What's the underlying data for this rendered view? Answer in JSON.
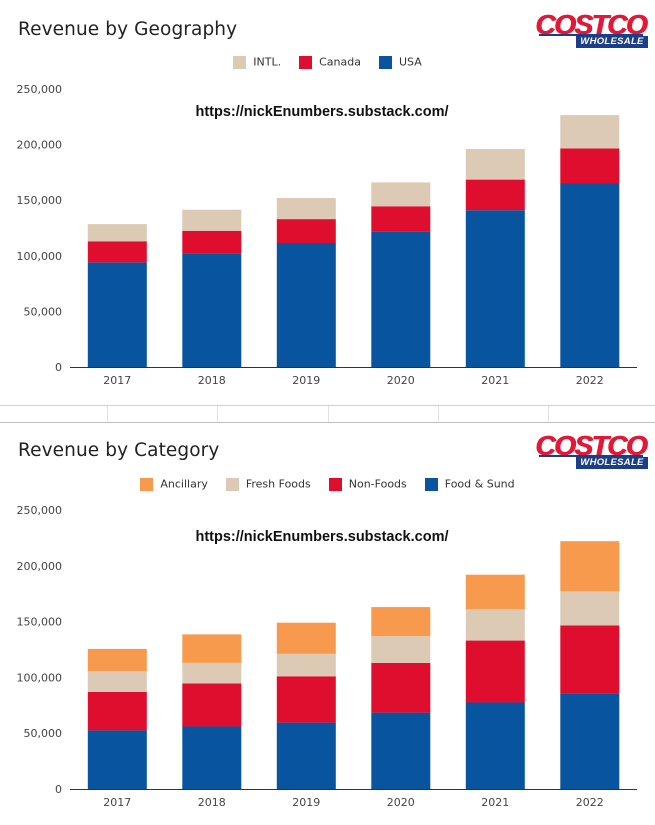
{
  "branding": {
    "logo_main": "COSTCO",
    "logo_sub": "WHOLESALE"
  },
  "chart_data": [
    {
      "type": "bar",
      "stacked": true,
      "title": "Revenue by Geography",
      "annotation": "https://nickEnumbers.substack.com/",
      "categories": [
        "2017",
        "2018",
        "2019",
        "2020",
        "2021",
        "2022"
      ],
      "series": [
        {
          "name": "USA",
          "color": "#08549f",
          "values": [
            94000,
            102000,
            111500,
            122000,
            141000,
            165000
          ]
        },
        {
          "name": "Canada",
          "color": "#e00e2e",
          "values": [
            19000,
            20500,
            21500,
            22500,
            27500,
            31500
          ]
        },
        {
          "name": "INTL.",
          "color": "#dccab5",
          "values": [
            15500,
            19000,
            19000,
            21500,
            27500,
            30000
          ]
        }
      ],
      "legend_order": [
        "INTL.",
        "Canada",
        "USA"
      ],
      "legend_position": "top",
      "ylim": [
        0,
        250000
      ],
      "yticks": [
        0,
        50000,
        100000,
        150000,
        200000,
        250000
      ],
      "ytick_labels": [
        "0",
        "50,000",
        "100,000",
        "150,000",
        "200,000",
        "250,000"
      ],
      "grid": false
    },
    {
      "type": "bar",
      "stacked": true,
      "title": "Revenue by Category",
      "annotation": "https://nickEnumbers.substack.com/",
      "categories": [
        "2017",
        "2018",
        "2019",
        "2020",
        "2021",
        "2022"
      ],
      "series": [
        {
          "name": "Food & Sund",
          "color": "#08549f",
          "values": [
            52500,
            56000,
            59500,
            68500,
            77500,
            85500
          ]
        },
        {
          "name": "Non-Foods",
          "color": "#e00e2e",
          "values": [
            34500,
            38500,
            41500,
            44500,
            55500,
            61000
          ]
        },
        {
          "name": "Fresh Foods",
          "color": "#dccab5",
          "values": [
            18500,
            18500,
            20000,
            24000,
            28000,
            30500
          ]
        },
        {
          "name": "Ancillary",
          "color": "#f79a4e",
          "values": [
            20000,
            25500,
            28000,
            26000,
            31000,
            45000
          ]
        }
      ],
      "legend_order": [
        "Ancillary",
        "Fresh Foods",
        "Non-Foods",
        "Food & Sund"
      ],
      "legend_position": "top",
      "ylim": [
        0,
        250000
      ],
      "yticks": [
        0,
        50000,
        100000,
        150000,
        200000,
        250000
      ],
      "ytick_labels": [
        "0",
        "50,000",
        "100,000",
        "150,000",
        "200,000",
        "250,000"
      ],
      "grid": false
    }
  ]
}
